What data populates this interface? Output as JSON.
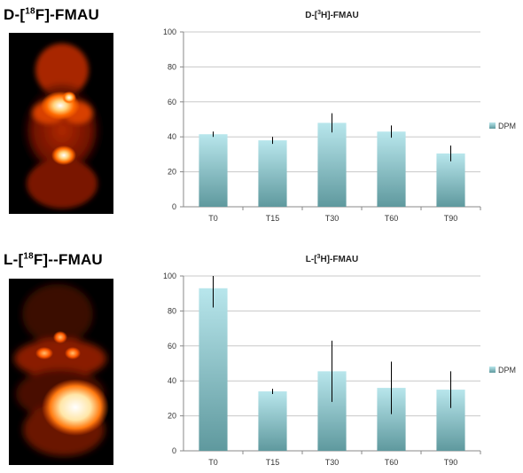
{
  "labels": {
    "top_pet": [
      "D-[",
      "18",
      "F]-FMAU"
    ],
    "bottom_pet": [
      "L-[",
      "18",
      "F]--FMAU"
    ]
  },
  "colors": {
    "bar_top": "#b8e6ec",
    "bar_bottom": "#5f999e",
    "grid": "#c8c8c8",
    "error": "#000000",
    "pet_hot": "#ffffff",
    "pet_mid": "#ff6a00",
    "pet_dark": "#2a0500"
  },
  "icons": [
    "pet-scan-image"
  ],
  "chart_data": [
    {
      "type": "bar",
      "title_parts": [
        "D-[",
        "3",
        "H]-FMAU"
      ],
      "categories": [
        "T0",
        "T15",
        "T30",
        "T60",
        "T90"
      ],
      "series": [
        {
          "name": "DPM",
          "values": [
            41.5,
            38.0,
            48.0,
            43.0,
            30.5
          ],
          "errors": [
            1.5,
            2.0,
            5.5,
            3.5,
            4.5
          ]
        }
      ],
      "ylim": [
        0,
        100
      ],
      "yticks": [
        0,
        20,
        40,
        60,
        80,
        100
      ],
      "grid": true,
      "legend": "right"
    },
    {
      "type": "bar",
      "title_parts": [
        "L-[",
        "3",
        "H]-FMAU"
      ],
      "categories": [
        "T0",
        "T15",
        "T30",
        "T60",
        "T90"
      ],
      "series": [
        {
          "name": "DPM",
          "values": [
            93.0,
            34.0,
            45.5,
            36.0,
            35.0
          ],
          "errors": [
            11.0,
            1.5,
            17.5,
            15.0,
            10.5
          ]
        }
      ],
      "ylim": [
        0,
        100
      ],
      "yticks": [
        0,
        20,
        40,
        60,
        80,
        100
      ],
      "grid": true,
      "legend": "right"
    }
  ]
}
